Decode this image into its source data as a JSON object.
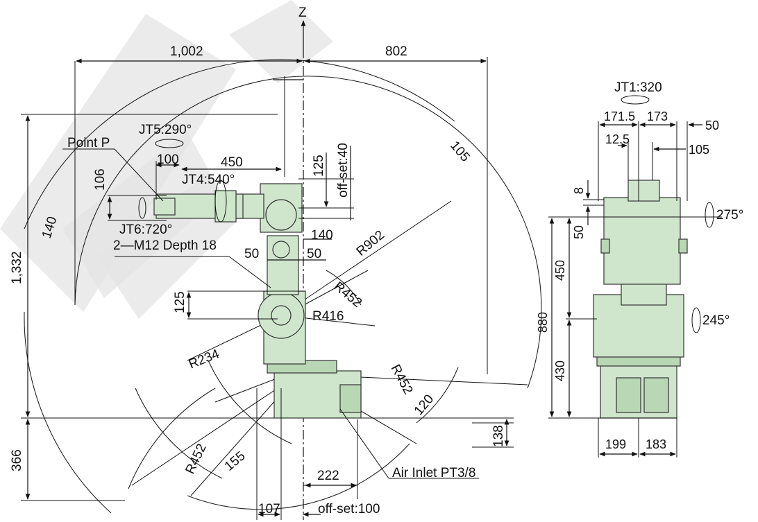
{
  "axis": {
    "z": "Z"
  },
  "side_view": {
    "top_dims": {
      "left_1002": "1,002",
      "right_802": "802"
    },
    "joints": {
      "jt5": "JT5:290°",
      "jt4": "JT4:540°",
      "jt6": "JT6:720°"
    },
    "point_p": "Point P",
    "dims": {
      "d100": "100",
      "d450_arm": "450",
      "d106": "106",
      "d125_top": "125",
      "offset40": "off-set:40",
      "d140_mid": "140",
      "d50_left": "50",
      "d50_right": "50",
      "d125_mid": "125",
      "d1332": "1,332",
      "d366": "366",
      "d140_arc": "140",
      "d105_arc": "105",
      "d120_arc": "120",
      "d155_arc": "155",
      "d138": "138",
      "d222": "222",
      "d107": "107",
      "offset100": "off-set:100"
    },
    "radii": {
      "r902": "R902",
      "r452_top": "R452",
      "r416": "R416",
      "r234": "R234",
      "r452_right": "R452",
      "r452_bottom": "R452"
    },
    "notes": {
      "m12": "2—M12 Depth 18",
      "air_inlet": "Air Inlet  PT3/8"
    }
  },
  "front_view": {
    "jt1": "JT1:320",
    "dims": {
      "d171_5": "171.5",
      "d173": "173",
      "d50": "50",
      "d12_5": "12.5",
      "d105": "105",
      "d8": "8",
      "d50_v": "50",
      "d450": "450",
      "d880": "880",
      "d430": "430",
      "d199": "199",
      "d183": "183"
    },
    "rotations": {
      "r275": "275°",
      "r245": "245°"
    }
  },
  "colors": {
    "robot_body": "#cfe6cc",
    "robot_shadow": "#b9d6b5",
    "lines": "#111111",
    "watermark": "#e4e4e4"
  }
}
